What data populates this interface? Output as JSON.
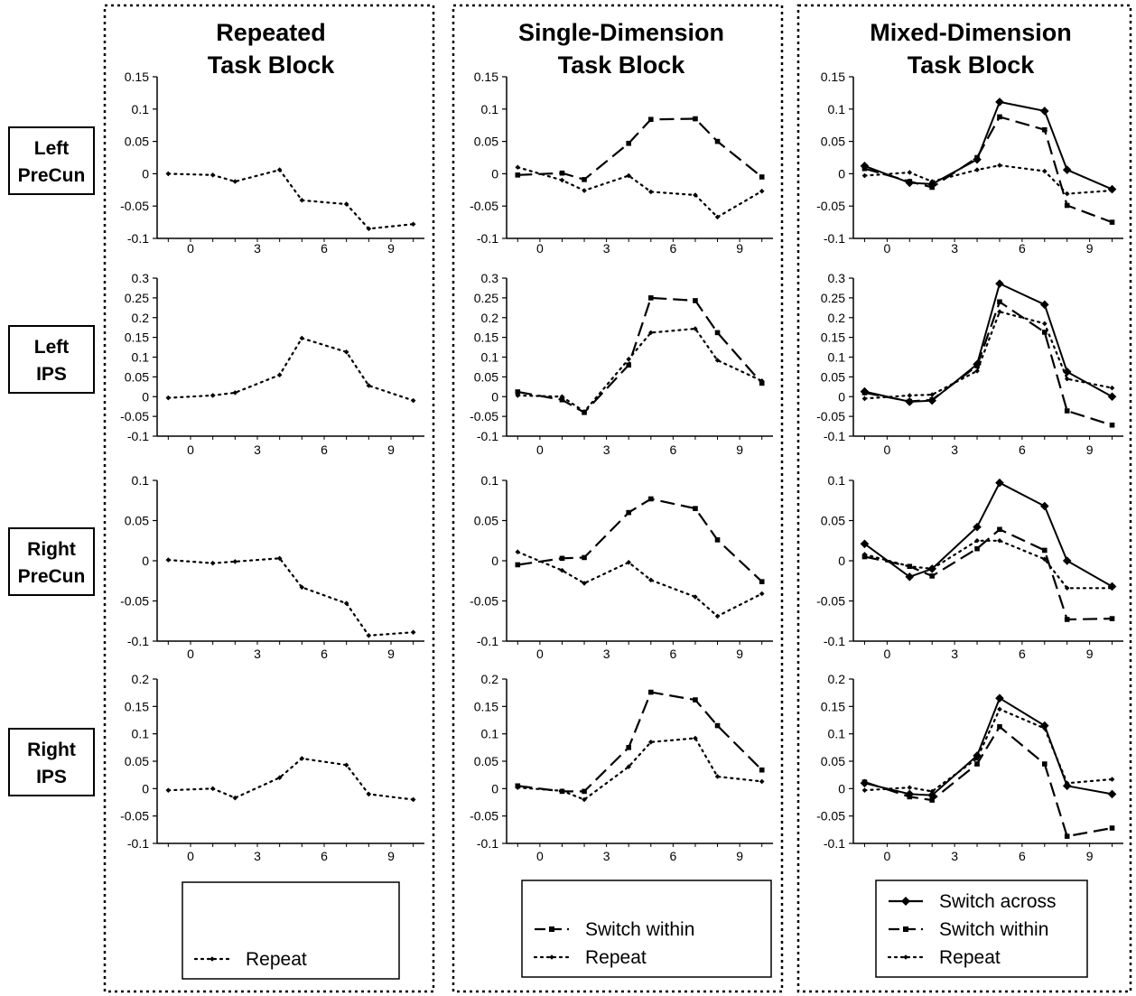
{
  "figure": {
    "columns": [
      {
        "title_lines": [
          "Repeated",
          "Task Block"
        ]
      },
      {
        "title_lines": [
          "Single-Dimension",
          "Task Block"
        ]
      },
      {
        "title_lines": [
          "Mixed-Dimension",
          "Task Block"
        ]
      }
    ],
    "rows": [
      {
        "label_lines": [
          "Left",
          "PreCun"
        ]
      },
      {
        "label_lines": [
          "Left",
          "IPS"
        ]
      },
      {
        "label_lines": [
          "Right",
          "PreCun"
        ]
      },
      {
        "label_lines": [
          "Right",
          "IPS"
        ]
      }
    ],
    "legends": [
      {
        "entries": [
          "Repeat"
        ]
      },
      {
        "entries": [
          "Switch within",
          "Repeat"
        ]
      },
      {
        "entries": [
          "Switch across",
          "Switch within",
          "Repeat"
        ]
      }
    ]
  },
  "chart_data": [
    {
      "type": "line",
      "x": [
        -1,
        1,
        2,
        4,
        5,
        7,
        8,
        10
      ],
      "xticks": [
        0,
        3,
        6,
        9
      ],
      "xlim": [
        -1.5,
        10.5
      ],
      "ylim": [
        -0.1,
        0.15
      ],
      "yticks": [
        "-0.1",
        "-0.05",
        "0",
        "0.05",
        "0.1",
        "0.15"
      ],
      "series": [
        {
          "name": "Repeat",
          "style": "dotted",
          "values": [
            0,
            -0.002,
            -0.012,
            0.006,
            -0.041,
            -0.047,
            -0.085,
            -0.078
          ]
        }
      ]
    },
    {
      "type": "line",
      "x": [
        -1,
        1,
        2,
        4,
        5,
        7,
        8,
        10
      ],
      "xticks": [
        0,
        3,
        6,
        9
      ],
      "xlim": [
        -1.5,
        10.5
      ],
      "ylim": [
        -0.1,
        0.15
      ],
      "yticks": [
        "-0.1",
        "-0.05",
        "0",
        "0.05",
        "0.1",
        "0.15"
      ],
      "series": [
        {
          "name": "Switch within",
          "style": "dashed",
          "values": [
            -0.002,
            0.001,
            -0.009,
            0.047,
            0.084,
            0.085,
            0.05,
            -0.005
          ]
        },
        {
          "name": "Repeat",
          "style": "dotted",
          "values": [
            0.01,
            -0.01,
            -0.026,
            -0.003,
            -0.028,
            -0.033,
            -0.067,
            -0.027
          ]
        }
      ]
    },
    {
      "type": "line",
      "x": [
        -1,
        1,
        2,
        4,
        5,
        7,
        8,
        10
      ],
      "xticks": [
        0,
        3,
        6,
        9
      ],
      "xlim": [
        -1.5,
        10.5
      ],
      "ylim": [
        -0.1,
        0.15
      ],
      "yticks": [
        "-0.1",
        "-0.05",
        "0",
        "0.05",
        "0.1",
        "0.15"
      ],
      "series": [
        {
          "name": "Switch across",
          "style": "solid",
          "values": [
            0.012,
            -0.014,
            -0.016,
            0.022,
            0.111,
            0.097,
            0.006,
            -0.024
          ]
        },
        {
          "name": "Switch within",
          "style": "dashed",
          "values": [
            0.008,
            -0.012,
            -0.021,
            0.025,
            0.088,
            0.068,
            -0.049,
            -0.075
          ]
        },
        {
          "name": "Repeat",
          "style": "dotted",
          "values": [
            -0.003,
            0.002,
            -0.012,
            0.006,
            0.013,
            0.004,
            -0.031,
            -0.026
          ]
        }
      ]
    },
    {
      "type": "line",
      "x": [
        -1,
        1,
        2,
        4,
        5,
        7,
        8,
        10
      ],
      "xticks": [
        0,
        3,
        6,
        9
      ],
      "xlim": [
        -1.5,
        10.5
      ],
      "ylim": [
        -0.1,
        0.3
      ],
      "yticks": [
        "-0.1",
        "-0.05",
        "0",
        "0.05",
        "0.1",
        "0.15",
        "0.2",
        "0.25",
        "0.3"
      ],
      "series": [
        {
          "name": "Repeat",
          "style": "dotted",
          "values": [
            -0.003,
            0.003,
            0.01,
            0.055,
            0.148,
            0.113,
            0.028,
            -0.01
          ]
        }
      ]
    },
    {
      "type": "line",
      "x": [
        -1,
        1,
        2,
        4,
        5,
        7,
        8,
        10
      ],
      "xticks": [
        0,
        3,
        6,
        9
      ],
      "xlim": [
        -1.5,
        10.5
      ],
      "ylim": [
        -0.1,
        0.3
      ],
      "yticks": [
        "-0.1",
        "-0.05",
        "0",
        "0.05",
        "0.1",
        "0.15",
        "0.2",
        "0.25",
        "0.3"
      ],
      "series": [
        {
          "name": "Switch within",
          "style": "dashed",
          "values": [
            0.012,
            -0.008,
            -0.04,
            0.08,
            0.25,
            0.243,
            0.162,
            0.034
          ]
        },
        {
          "name": "Repeat",
          "style": "dotted",
          "values": [
            0.003,
            0.0,
            -0.038,
            0.095,
            0.162,
            0.172,
            0.092,
            0.04
          ]
        }
      ]
    },
    {
      "type": "line",
      "x": [
        -1,
        1,
        2,
        4,
        5,
        7,
        8,
        10
      ],
      "xticks": [
        0,
        3,
        6,
        9
      ],
      "xlim": [
        -1.5,
        10.5
      ],
      "ylim": [
        -0.1,
        0.3
      ],
      "yticks": [
        "-0.1",
        "-0.05",
        "0",
        "0.05",
        "0.1",
        "0.15",
        "0.2",
        "0.25",
        "0.3"
      ],
      "series": [
        {
          "name": "Switch across",
          "style": "solid",
          "values": [
            0.013,
            -0.013,
            -0.01,
            0.082,
            0.286,
            0.233,
            0.063,
            0.0
          ]
        },
        {
          "name": "Switch within",
          "style": "dashed",
          "values": [
            0.01,
            -0.012,
            -0.008,
            0.078,
            0.24,
            0.163,
            -0.036,
            -0.072
          ]
        },
        {
          "name": "Repeat",
          "style": "dotted",
          "values": [
            -0.005,
            0.003,
            0.005,
            0.065,
            0.215,
            0.185,
            0.045,
            0.022
          ]
        }
      ]
    },
    {
      "type": "line",
      "x": [
        -1,
        1,
        2,
        4,
        5,
        7,
        8,
        10
      ],
      "xticks": [
        0,
        3,
        6,
        9
      ],
      "xlim": [
        -1.5,
        10.5
      ],
      "ylim": [
        -0.1,
        0.1
      ],
      "yticks": [
        "-0.1",
        "-0.05",
        "0",
        "0.05",
        "0.1"
      ],
      "series": [
        {
          "name": "Repeat",
          "style": "dotted",
          "values": [
            0.001,
            -0.003,
            -0.001,
            0.003,
            -0.033,
            -0.053,
            -0.093,
            -0.089
          ]
        }
      ]
    },
    {
      "type": "line",
      "x": [
        -1,
        1,
        2,
        4,
        5,
        7,
        8,
        10
      ],
      "xticks": [
        0,
        3,
        6,
        9
      ],
      "xlim": [
        -1.5,
        10.5
      ],
      "ylim": [
        -0.1,
        0.1
      ],
      "yticks": [
        "-0.1",
        "-0.05",
        "0",
        "0.05",
        "0.1"
      ],
      "series": [
        {
          "name": "Switch within",
          "style": "dashed",
          "values": [
            -0.005,
            0.003,
            0.004,
            0.06,
            0.077,
            0.065,
            0.026,
            -0.026
          ]
        },
        {
          "name": "Repeat",
          "style": "dotted",
          "values": [
            0.011,
            -0.012,
            -0.028,
            -0.002,
            -0.024,
            -0.045,
            -0.069,
            -0.041
          ]
        }
      ]
    },
    {
      "type": "line",
      "x": [
        -1,
        1,
        2,
        4,
        5,
        7,
        8,
        10
      ],
      "xticks": [
        0,
        3,
        6,
        9
      ],
      "xlim": [
        -1.5,
        10.5
      ],
      "ylim": [
        -0.1,
        0.1
      ],
      "yticks": [
        "-0.1",
        "-0.05",
        "0",
        "0.05",
        "0.1"
      ],
      "series": [
        {
          "name": "Switch across",
          "style": "solid",
          "values": [
            0.021,
            -0.02,
            -0.01,
            0.042,
            0.097,
            0.068,
            0.0,
            -0.032
          ]
        },
        {
          "name": "Switch within",
          "style": "dashed",
          "values": [
            0.005,
            -0.007,
            -0.019,
            0.015,
            0.039,
            0.013,
            -0.073,
            -0.072
          ]
        },
        {
          "name": "Repeat",
          "style": "dotted",
          "values": [
            0.008,
            -0.007,
            -0.01,
            0.025,
            0.025,
            0.002,
            -0.034,
            -0.034
          ]
        }
      ]
    },
    {
      "type": "line",
      "x": [
        -1,
        1,
        2,
        4,
        5,
        7,
        8,
        10
      ],
      "xticks": [
        0,
        3,
        6,
        9
      ],
      "xlim": [
        -1.5,
        10.5
      ],
      "ylim": [
        -0.1,
        0.2
      ],
      "yticks": [
        "-0.1",
        "-0.05",
        "0",
        "0.05",
        "0.1",
        "0.15",
        "0.2"
      ],
      "series": [
        {
          "name": "Repeat",
          "style": "dotted",
          "values": [
            -0.003,
            0.0,
            -0.017,
            0.02,
            0.055,
            0.043,
            -0.01,
            -0.02
          ]
        }
      ]
    },
    {
      "type": "line",
      "x": [
        -1,
        1,
        2,
        4,
        5,
        7,
        8,
        10
      ],
      "xticks": [
        0,
        3,
        6,
        9
      ],
      "xlim": [
        -1.5,
        10.5
      ],
      "ylim": [
        -0.1,
        0.2
      ],
      "yticks": [
        "-0.1",
        "-0.05",
        "0",
        "0.05",
        "0.1",
        "0.15",
        "0.2"
      ],
      "series": [
        {
          "name": "Switch within",
          "style": "dashed",
          "values": [
            0.005,
            -0.005,
            -0.005,
            0.075,
            0.176,
            0.162,
            0.115,
            0.034
          ]
        },
        {
          "name": "Repeat",
          "style": "dotted",
          "values": [
            0.002,
            -0.004,
            -0.02,
            0.04,
            0.085,
            0.092,
            0.022,
            0.013
          ]
        }
      ]
    },
    {
      "type": "line",
      "x": [
        -1,
        1,
        2,
        4,
        5,
        7,
        8,
        10
      ],
      "xticks": [
        0,
        3,
        6,
        9
      ],
      "xlim": [
        -1.5,
        10.5
      ],
      "ylim": [
        -0.1,
        0.2
      ],
      "yticks": [
        "-0.1",
        "-0.05",
        "0",
        "0.05",
        "0.1",
        "0.15",
        "0.2"
      ],
      "series": [
        {
          "name": "Switch across",
          "style": "solid",
          "values": [
            0.01,
            -0.01,
            -0.012,
            0.06,
            0.165,
            0.115,
            0.005,
            -0.01
          ]
        },
        {
          "name": "Switch within",
          "style": "dashed",
          "values": [
            0.012,
            -0.015,
            -0.021,
            0.045,
            0.113,
            0.045,
            -0.087,
            -0.072
          ]
        },
        {
          "name": "Repeat",
          "style": "dotted",
          "values": [
            -0.003,
            0.002,
            -0.005,
            0.055,
            0.145,
            0.11,
            0.01,
            0.017
          ]
        }
      ]
    }
  ]
}
